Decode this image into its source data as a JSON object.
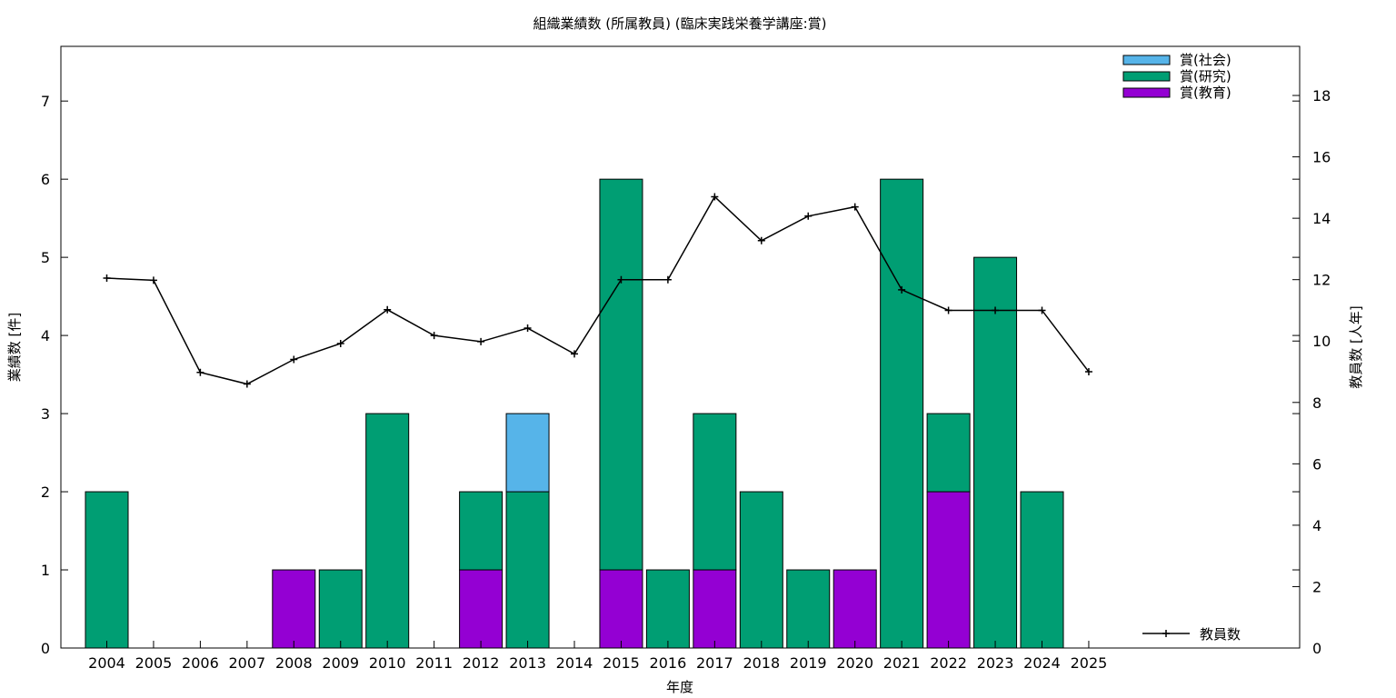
{
  "chart_data": {
    "type": "bar",
    "stacked": true,
    "title": "組織業績数 (所属教員) (臨床実践栄養学講座:賞)",
    "xlabel": "年度",
    "ylabel": "業績数 [件]",
    "y2label": "教員数 [人年]",
    "categories": [
      "2004",
      "2005",
      "2006",
      "2007",
      "2008",
      "2009",
      "2010",
      "2011",
      "2012",
      "2013",
      "2014",
      "2015",
      "2016",
      "2017",
      "2018",
      "2019",
      "2020",
      "2021",
      "2022",
      "2023",
      "2024",
      "2025"
    ],
    "ylim": [
      0,
      7.7
    ],
    "y2lim": [
      0,
      19.6
    ],
    "yticks": [
      0,
      1,
      2,
      3,
      4,
      5,
      6,
      7
    ],
    "y2ticks": [
      0,
      2,
      4,
      6,
      8,
      10,
      12,
      14,
      16,
      18
    ],
    "grid": false,
    "legend_position": "top-right",
    "series": [
      {
        "name": "賞(教育)",
        "color": "#9400d3",
        "values": [
          0,
          0,
          0,
          0,
          1,
          0,
          0,
          0,
          1,
          0,
          0,
          1,
          0,
          1,
          0,
          0,
          1,
          0,
          2,
          0,
          0,
          0
        ]
      },
      {
        "name": "賞(研究)",
        "color": "#009e73",
        "values": [
          2,
          0,
          0,
          0,
          0,
          1,
          3,
          0,
          1,
          2,
          0,
          5,
          1,
          2,
          2,
          1,
          0,
          6,
          1,
          5,
          2,
          0
        ]
      },
      {
        "name": "賞(社会)",
        "color": "#56b4e9",
        "values": [
          0,
          0,
          0,
          0,
          0,
          0,
          0,
          0,
          0,
          1,
          0,
          0,
          0,
          0,
          0,
          0,
          0,
          0,
          0,
          0,
          0,
          0
        ]
      }
    ],
    "legend_order": [
      "賞(社会)",
      "賞(研究)",
      "賞(教育)"
    ],
    "line_series": {
      "name": "教員数",
      "axis": "y2",
      "color": "#000000",
      "values": [
        12.05,
        11.98,
        8.98,
        8.6,
        9.4,
        9.92,
        11.02,
        10.18,
        9.98,
        10.42,
        9.58,
        12.0,
        12.0,
        14.7,
        13.27,
        14.07,
        14.37,
        11.67,
        11.0,
        11.0,
        11.0,
        9.0
      ]
    }
  }
}
